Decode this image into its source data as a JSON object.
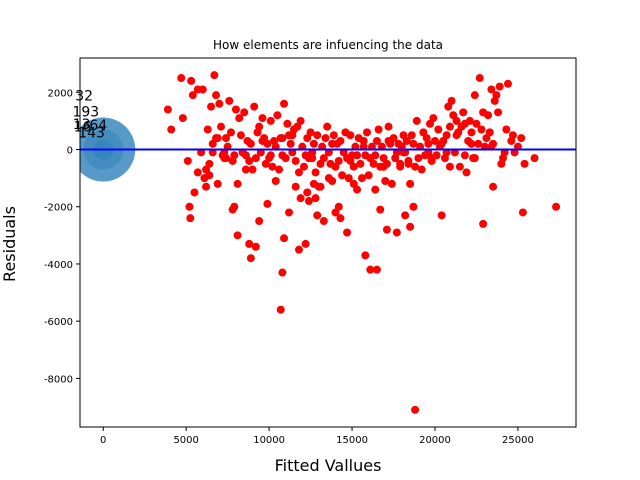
{
  "chart_data": {
    "type": "scatter",
    "title": "How elements are infuencing the data",
    "xlabel": "Fitted Vallues",
    "ylabel": "Residuals",
    "xlim": [
      -1400,
      28500
    ],
    "ylim": [
      -9700,
      3200
    ],
    "xticks": [
      0,
      5000,
      10000,
      15000,
      20000,
      25000
    ],
    "xtick_labels": [
      "0",
      "5000",
      "10000",
      "15000",
      "20000",
      "25000"
    ],
    "yticks": [
      2000,
      0,
      -2000,
      -4000,
      -6000,
      -8000
    ],
    "ytick_labels": [
      "2000",
      "0",
      "-2000",
      "-4000",
      "-6000",
      "-8000"
    ],
    "grid": false,
    "reference_line": {
      "y": 0,
      "color": "#0000ff"
    },
    "colors": {
      "points": "#ff0000",
      "influence_circle": "#1f77b4",
      "reference_line": "#0000ff"
    },
    "influence_circle": {
      "x": 0,
      "y": 0
    },
    "annotations": [
      {
        "text": "32",
        "x": -1150,
        "y": 1720
      },
      {
        "text": "193",
        "x": -1050,
        "y": 1150
      },
      {
        "text": "13",
        "x": -1300,
        "y": 720
      },
      {
        "text": "16",
        "x": -1250,
        "y": 630
      },
      {
        "text": "64",
        "x": -300,
        "y": 680
      },
      {
        "text": "143",
        "x": -700,
        "y": 420
      }
    ],
    "series": [
      {
        "x": [
          3900,
          4100,
          4700,
          4800,
          5100,
          5300,
          5400,
          5700,
          5900,
          6000,
          6200,
          6300,
          6400,
          6500,
          6600,
          6700,
          6800,
          6900,
          6900,
          7000,
          7100,
          7200,
          7300,
          7400,
          7500,
          7600,
          7700,
          7800,
          7900,
          8000,
          8100,
          8200,
          8300,
          8400,
          8500,
          8600,
          8700,
          8800,
          8900,
          9000,
          9100,
          9200,
          9300,
          9400,
          9500,
          9600,
          9700,
          9800,
          9900,
          10000,
          10100,
          10200,
          10300,
          10400,
          10500,
          10600,
          10700,
          10800,
          10900,
          11000,
          11100,
          11200,
          11300,
          11400,
          11500,
          11600,
          11700,
          11800,
          11900,
          12000,
          12100,
          12200,
          12300,
          12400,
          12500,
          12600,
          12700,
          12800,
          12900,
          13000,
          13100,
          13200,
          13300,
          13400,
          13500,
          13600,
          13700,
          13800,
          13900,
          14000,
          14100,
          14200,
          14300,
          14400,
          14500,
          14600,
          14700,
          14800,
          14900,
          15000,
          15100,
          15200,
          15300,
          15400,
          15500,
          15600,
          15700,
          15800,
          15900,
          16000,
          16100,
          16200,
          16300,
          16400,
          16500,
          16600,
          16700,
          16800,
          16900,
          17000,
          17100,
          17200,
          17300,
          17400,
          17500,
          17600,
          17700,
          17800,
          17900,
          18000,
          18100,
          18200,
          18300,
          18400,
          18500,
          18600,
          18700,
          18800,
          18900,
          19000,
          19100,
          19200,
          19300,
          19400,
          19500,
          19600,
          19700,
          19800,
          19900,
          20000,
          20100,
          20200,
          20300,
          20400,
          20500,
          20600,
          20700,
          20800,
          20900,
          21000,
          21100,
          21200,
          21300,
          21400,
          21500,
          21600,
          21700,
          21800,
          21900,
          22000,
          22100,
          22200,
          22300,
          22400,
          22500,
          22600,
          22700,
          22800,
          22900,
          23000,
          23100,
          23200,
          23300,
          23400,
          23500,
          23600,
          23700,
          23800,
          23900,
          24000,
          24200,
          24400,
          24600,
          24800,
          25000,
          25200,
          25400,
          26000,
          27300,
          5200,
          5250,
          5700,
          6200,
          7400,
          8100,
          8800,
          8900,
          9200,
          10800,
          10900,
          11200,
          11800,
          12200,
          12400,
          12700,
          12900,
          13300,
          14000,
          14300,
          14700,
          15800,
          16100,
          16500,
          17100,
          17700,
          18200,
          18500,
          18800,
          10700,
          12800,
          10800,
          6400,
          6600,
          6800,
          7300,
          9600,
          10100,
          11400,
          12600,
          13800,
          14900,
          15700,
          16400,
          17200,
          18100,
          19600,
          20700,
          21300,
          22200,
          23500,
          24100,
          5500,
          7800,
          9900,
          11600,
          13100,
          15300,
          17900,
          19800,
          21800,
          23400,
          25300,
          6100,
          8600,
          10400,
          12300,
          14200,
          16700,
          18700,
          20400,
          22900,
          24700,
          7900,
          9400,
          11900,
          13600,
          15100,
          16900,
          18400,
          20900,
          22400,
          24300
        ],
        "y": [
          1400,
          700,
          2500,
          1100,
          -400,
          2400,
          1900,
          2100,
          -100,
          2100,
          -700,
          700,
          -900,
          1500,
          200,
          2600,
          1900,
          400,
          -1200,
          1600,
          800,
          -200,
          -300,
          400,
          100,
          1700,
          600,
          -400,
          -200,
          1400,
          -1200,
          1100,
          500,
          -100,
          1300,
          -200,
          300,
          -400,
          200,
          -700,
          1500,
          -300,
          600,
          800,
          -100,
          1100,
          400,
          -500,
          200,
          -300,
          1000,
          -600,
          300,
          100,
          1200,
          -700,
          400,
          -200,
          1600,
          -300,
          900,
          500,
          200,
          -100,
          700,
          -400,
          800,
          -800,
          1000,
          100,
          -600,
          -200,
          400,
          -300,
          600,
          -100,
          200,
          -800,
          500,
          -1300,
          -500,
          100,
          -300,
          400,
          800,
          -100,
          -500,
          -1100,
          500,
          -600,
          200,
          -400,
          300,
          -900,
          -100,
          600,
          -300,
          -1000,
          500,
          -200,
          -600,
          100,
          -1400,
          400,
          -500,
          -1000,
          300,
          -200,
          600,
          -900,
          -300,
          100,
          -500,
          -1400,
          300,
          700,
          -600,
          100,
          -300,
          -1100,
          -500,
          800,
          200,
          -1200,
          400,
          -300,
          -100,
          200,
          -600,
          100,
          500,
          -100,
          300,
          -500,
          -1200,
          500,
          200,
          -600,
          1000,
          -300,
          100,
          -700,
          600,
          -200,
          400,
          -100,
          900,
          -400,
          1100,
          300,
          -200,
          700,
          100,
          200,
          300,
          -300,
          500,
          1500,
          800,
          1700,
          1200,
          -100,
          1000,
          600,
          -600,
          800,
          1300,
          900,
          -800,
          300,
          1000,
          600,
          -300,
          1900,
          900,
          200,
          2500,
          700,
          1300,
          100,
          400,
          1200,
          600,
          2100,
          200,
          1700,
          1900,
          1300,
          2200,
          -500,
          -100,
          2300,
          300,
          -100,
          100,
          400,
          -500,
          -300,
          -2000,
          -2000,
          -2400,
          -800,
          -1300,
          -300,
          -3000,
          -3300,
          -3800,
          -3400,
          -4300,
          -3100,
          -2200,
          -3500,
          -3300,
          -1800,
          -1200,
          -2300,
          -2500,
          -2200,
          -2400,
          -2900,
          -3700,
          -4200,
          -4200,
          -2800,
          -2900,
          -2300,
          -2700,
          -9100,
          -5600,
          -1700,
          400,
          -500,
          -100,
          400,
          -100,
          300,
          -200,
          500,
          -300,
          200,
          -400,
          100,
          -200,
          300,
          -100,
          200,
          -100,
          500,
          200,
          -1300,
          -300,
          -1500,
          -2100,
          -1900,
          -1300,
          -1300,
          -200,
          -500,
          -300,
          -200,
          100,
          -2200,
          -1000,
          -700,
          -1100,
          -1500,
          -2000,
          -2100,
          -2000,
          -2300,
          -2600,
          500,
          -2000,
          -2500,
          -1700,
          -1000,
          -1200,
          -600,
          -400,
          -600,
          -300,
          700
        ]
      }
    ]
  }
}
